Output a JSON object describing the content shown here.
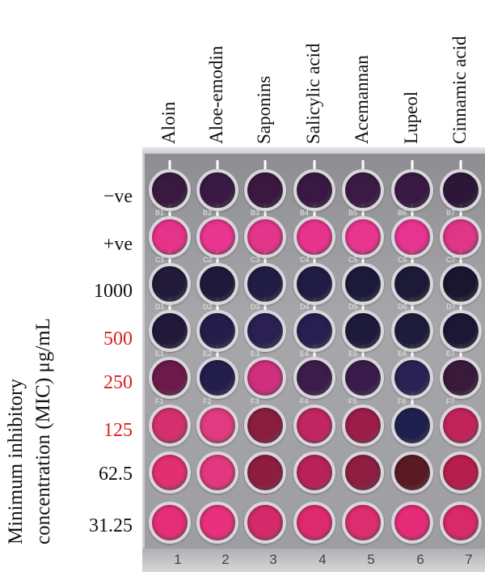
{
  "columns": [
    {
      "label": "Aloin",
      "end_row": 3
    },
    {
      "label": "Aloe-emodin",
      "end_row": 4
    },
    {
      "label": "Saponins",
      "end_row": 3
    },
    {
      "label": "Salicylic acid",
      "end_row": 4
    },
    {
      "label": "Acemannan",
      "end_row": 4
    },
    {
      "label": "Lupeol",
      "end_row": 5
    },
    {
      "label": "Cinnamic acid",
      "end_row": 4
    }
  ],
  "rows": [
    {
      "label": "−ve",
      "red": false
    },
    {
      "label": "+ve",
      "red": false
    },
    {
      "label": "1000",
      "red": false
    },
    {
      "label": "500",
      "red": true
    },
    {
      "label": "250",
      "red": true
    },
    {
      "label": "125",
      "red": true
    },
    {
      "label": "62.5",
      "red": false
    },
    {
      "label": "31.25",
      "red": false
    }
  ],
  "axis_title": {
    "line1": "Minimum inhibitory",
    "line2": "concentration (MIC) μg/mL"
  },
  "plate_column_numbers": [
    "1",
    "2",
    "3",
    "4",
    "5",
    "6",
    "7"
  ],
  "well_colors": [
    [
      "#3a1940",
      "#3a1a45",
      "#3b1840",
      "#3a1845",
      "#3c1a46",
      "#3a1a45",
      "#2e1638"
    ],
    [
      "#e6338a",
      "#e8358f",
      "#e3358a",
      "#e8338d",
      "#e8358e",
      "#e73490",
      "#e0368a"
    ],
    [
      "#221a3a",
      "#1f1a3c",
      "#221d45",
      "#201c46",
      "#1c1a3a",
      "#1d1a38",
      "#1b1630"
    ],
    [
      "#21183a",
      "#251d4a",
      "#2a2152",
      "#271f50",
      "#1e1a3c",
      "#1e1c3c",
      "#1c1734"
    ],
    [
      "#6d1a4a",
      "#241e4d",
      "#d02f7b",
      "#3c1c4a",
      "#3a1c4c",
      "#2a2256",
      "#3a1a3a"
    ],
    [
      "#d5306e",
      "#e03a80",
      "#8a1e40",
      "#c02662",
      "#9c1e48",
      "#202050",
      "#c2245a"
    ],
    [
      "#e0306e",
      "#e2377e",
      "#8e1e40",
      "#b82258",
      "#8e1e42",
      "#5a1a24",
      "#b81e4e"
    ],
    [
      "#e62d78",
      "#e8307c",
      "#d52a6a",
      "#dd2a6e",
      "#dc2d6e",
      "#e62c78",
      "#d82a6a"
    ]
  ],
  "well_codes": [
    "B",
    "C",
    "D",
    "E",
    "F"
  ]
}
